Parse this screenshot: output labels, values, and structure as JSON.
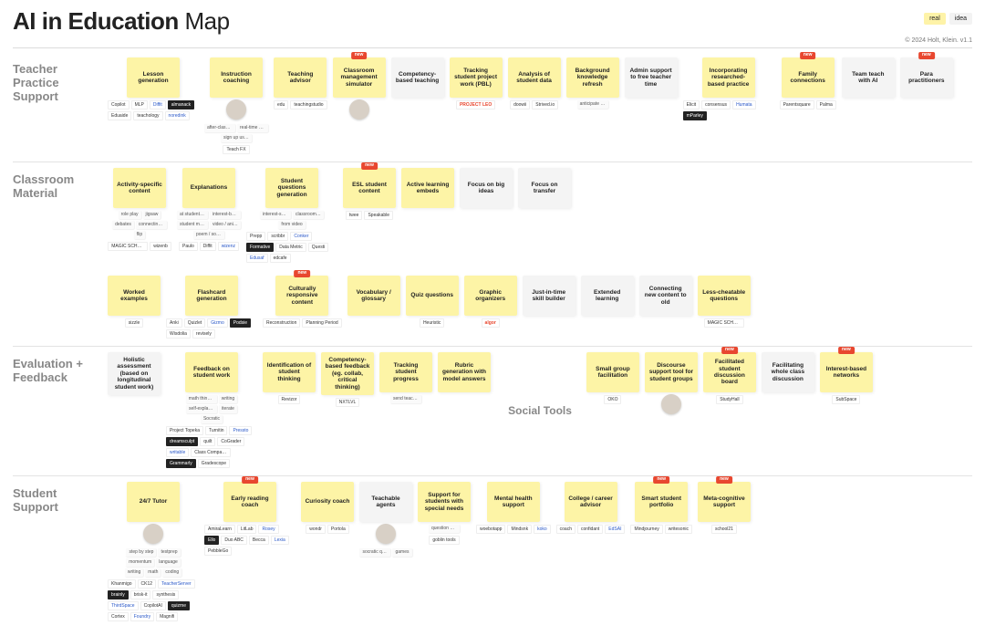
{
  "title_bold": "AI in Education",
  "title_rest": " Map",
  "legend": {
    "real": "real",
    "idea": "idea"
  },
  "copyright": "© 2024 Holt, Klein. v1.1",
  "badge_new": "new",
  "sections": {
    "teacher": {
      "label": "Teacher Practice Support",
      "cards": [
        {
          "t": "Lesson generation",
          "k": "real",
          "tools": [
            "Copilot",
            "MLP",
            "Diffit",
            "almanack",
            "Eduaide",
            "teachology",
            "noredink"
          ]
        },
        {
          "t": "Instruction coaching",
          "k": "real",
          "avatar": true,
          "subs": [
            "after-class coach",
            "real-time coach",
            "sign up using framework"
          ],
          "tools": [
            "Teach FX"
          ]
        },
        {
          "t": "Teaching advisor",
          "k": "real",
          "tools": [
            "edu",
            "teachingstudio"
          ]
        },
        {
          "t": "Classroom management simulator",
          "k": "real",
          "new": true,
          "avatar": true
        },
        {
          "t": "Competency-based teaching",
          "k": "idea"
        },
        {
          "t": "Tracking student project work (PBL)",
          "k": "real",
          "tools_style": "orange",
          "tools": [
            "PROJECT LEO"
          ]
        },
        {
          "t": "Analysis of student data",
          "k": "real",
          "tools": [
            "doowii",
            "Strived.io"
          ]
        },
        {
          "t": "Background knowledge refresh",
          "k": "real",
          "subs": [
            "anticipate questions"
          ]
        },
        {
          "t": "Admin support to free teacher time",
          "k": "idea"
        },
        {
          "t": "Incorporating researched-based practice",
          "k": "real",
          "tools": [
            "Elicit",
            "consensus",
            "Humata",
            "mParley"
          ]
        },
        {
          "t": "Family connections",
          "k": "real",
          "new": true,
          "tools": [
            "Parentsquare",
            "Palma"
          ]
        },
        {
          "t": "Team teach with AI",
          "k": "idea"
        },
        {
          "t": "Para practitioners",
          "k": "idea",
          "new": true
        }
      ]
    },
    "classroom": {
      "label": "Classroom Material",
      "row1": [
        {
          "t": "Activity-specific content",
          "k": "real",
          "subs": [
            "role play",
            "jigsaw",
            "debates",
            "connecting cards",
            "flip"
          ],
          "tools": [
            "MAGIC SCHOOL",
            "wizenb"
          ]
        },
        {
          "t": "Explanations",
          "k": "real",
          "subs": [
            "at student reading level",
            "interest-based",
            "student made eg. TikTok",
            "video / animation",
            "poem / song / story"
          ],
          "tools": [
            "Paulo",
            "Diffit",
            "wizenz"
          ]
        },
        {
          "t": "Student questions generation",
          "k": "real",
          "subs": [
            "interest-specific",
            "classroom response",
            "from video"
          ],
          "tools": [
            "Prepp",
            "scribbr",
            "Conker",
            "Formative",
            "Data Metric",
            "Questi",
            "Edusaf",
            "edcafe"
          ]
        },
        {
          "t": "ESL student content",
          "k": "real",
          "new": true,
          "tools": [
            "twee",
            "Speakable"
          ]
        },
        {
          "t": "Active learning embeds",
          "k": "real"
        },
        {
          "t": "Focus on big ideas",
          "k": "idea"
        },
        {
          "t": "Focus on transfer",
          "k": "idea"
        }
      ],
      "row2": [
        {
          "t": "Worked examples",
          "k": "real",
          "tools": [
            "sizzle"
          ]
        },
        {
          "t": "Flashcard generation",
          "k": "real",
          "tools": [
            "Anki",
            "Quizlet",
            "Gizmo",
            "Podsie",
            "Wisdolia",
            "revisely"
          ]
        },
        {
          "t": "Culturally responsive content",
          "k": "real",
          "new": true,
          "tools": [
            "Reconstruction",
            "Planning Period"
          ]
        },
        {
          "t": "Vocabulary / glossary",
          "k": "real"
        },
        {
          "t": "Quiz questions",
          "k": "real",
          "tools": [
            "Heuristic"
          ]
        },
        {
          "t": "Graphic organizers",
          "k": "real",
          "tools_style": "orange",
          "tools": [
            "algor"
          ]
        },
        {
          "t": "Just-in-time skill builder",
          "k": "idea"
        },
        {
          "t": "Extended learning",
          "k": "idea"
        },
        {
          "t": "Connecting new content to old",
          "k": "idea"
        },
        {
          "t": "Less-cheatable questions",
          "k": "real",
          "tools": [
            "MAGIC SCHOOL"
          ]
        }
      ]
    },
    "evaluation": {
      "label": "Evaluation + Feedback",
      "cards": [
        {
          "t": "Holistic assessment (based on longitudinal student work)",
          "k": "idea"
        },
        {
          "t": "Feedback on student work",
          "k": "real",
          "subs": [
            "math thinking",
            "writing",
            "self-explanation",
            "iterate",
            "Socratic"
          ],
          "tools": [
            "Project Topeka",
            "Turnitin",
            "Pressto",
            "dreamsculpt",
            "quilt",
            "CoGrader",
            "writable",
            "Class Companion",
            "Grammarly",
            "Gradescope"
          ]
        },
        {
          "t": "Identification of student thinking",
          "k": "real",
          "tools": [
            "Revizor"
          ]
        },
        {
          "t": "Competency-based feedback (eg. collab, critical thinking)",
          "k": "real",
          "tools": [
            "NXTLVL"
          ]
        },
        {
          "t": "Tracking student progress",
          "k": "real",
          "subs": [
            "send teacher report"
          ]
        },
        {
          "t": "Rubric generation with model answers",
          "k": "real"
        }
      ],
      "social_label": "Social Tools",
      "social": [
        {
          "t": "Small group facilitation",
          "k": "real",
          "tools": [
            "OKO"
          ]
        },
        {
          "t": "Discourse support tool for student groups",
          "k": "real",
          "avatar": true
        },
        {
          "t": "Facilitated student discussion board",
          "k": "real",
          "new": true,
          "tools": [
            "StudyHall"
          ]
        },
        {
          "t": "Facilitating whole class discussion",
          "k": "idea"
        },
        {
          "t": "Interest-based networks",
          "k": "real",
          "new": true,
          "tools": [
            "SubSpace"
          ]
        }
      ]
    },
    "student": {
      "label": "Student Support",
      "cards": [
        {
          "t": "24/7 Tutor",
          "k": "real",
          "subs": [
            "step by step",
            "testprep",
            "momentum",
            "language",
            "writing",
            "math",
            "coding"
          ],
          "avatar": true,
          "tools": [
            "Khanmigo",
            "CK12",
            "TeacherServer",
            "brainly",
            "brisk-it",
            "synthesis",
            "ThirdSpace",
            "CopilotAI",
            "quizme",
            "Cortex",
            "Foundry",
            "Magnifi"
          ]
        },
        {
          "t": "Early reading coach",
          "k": "real",
          "new": true,
          "tools": [
            "AmiraLearn",
            "LitLab",
            "Rosey",
            "Ello",
            "Duo ABC",
            "Becca",
            "Lexia",
            "PebbleGo"
          ]
        },
        {
          "t": "Curiosity coach",
          "k": "real",
          "tools": [
            "wondr",
            "Portola"
          ]
        },
        {
          "t": "Teachable agents",
          "k": "idea",
          "avatar": true,
          "subs": [
            "socratic questioner",
            "games"
          ]
        },
        {
          "t": "Support for students with special needs",
          "k": "real",
          "subs": [
            "question + document"
          ],
          "tools": [
            "goblin tools"
          ]
        },
        {
          "t": "Mental health support",
          "k": "real",
          "tools": [
            "woebotapp",
            "Mindsnk",
            "koko"
          ]
        },
        {
          "t": "College / career advisor",
          "k": "real",
          "tools": [
            "coach",
            "confidant",
            "EdSAI"
          ]
        },
        {
          "t": "Smart student portfolio",
          "k": "real",
          "new": true,
          "tools": [
            "Mindjourney",
            "writesonic"
          ]
        },
        {
          "t": "Meta-cognitive support",
          "k": "real",
          "new": true,
          "tools": [
            "school21"
          ]
        }
      ]
    }
  }
}
